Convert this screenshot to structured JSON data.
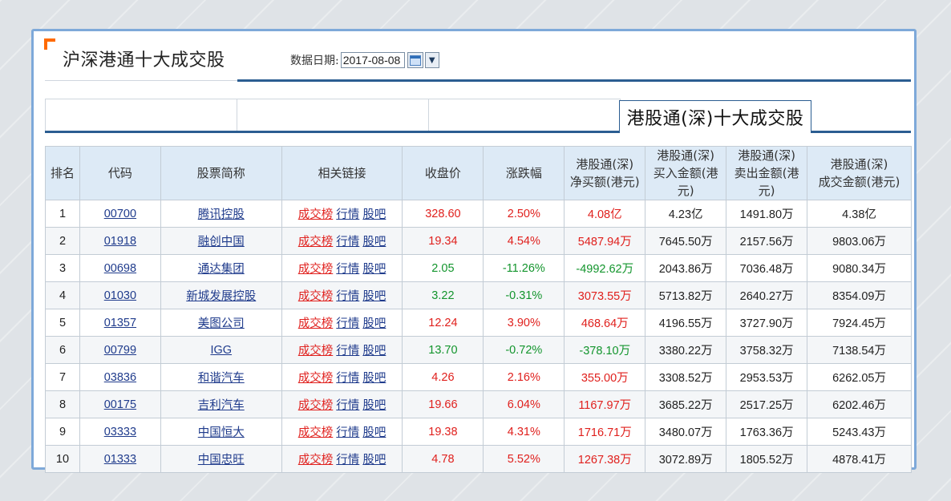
{
  "panel": {
    "title": "沪深港通十大成交股",
    "date_label": "数据日期:",
    "date_value": "2017-08-08"
  },
  "tabs": [
    {
      "label": ""
    },
    {
      "label": ""
    },
    {
      "label": ""
    },
    {
      "label": "港股通(深)十大成交股",
      "active": true
    }
  ],
  "table": {
    "headers": [
      "排名",
      "代码",
      "股票简称",
      "相关链接",
      "收盘价",
      "涨跌幅",
      "港股通(深)\n净买额(港元)",
      "港股通(深)\n买入金额(港元)",
      "港股通(深)\n卖出金额(港元)",
      "港股通(深)\n成交金额(港元)"
    ],
    "link_labels": [
      "成交榜",
      "行情",
      "股吧"
    ],
    "rows": [
      {
        "rank": "1",
        "code": "00700",
        "name": "腾讯控股",
        "close": "328.60",
        "change": "2.50%",
        "net": "4.08亿",
        "buy": "4.23亿",
        "sell": "1491.80万",
        "total": "4.38亿",
        "dir": "up"
      },
      {
        "rank": "2",
        "code": "01918",
        "name": "融创中国",
        "close": "19.34",
        "change": "4.54%",
        "net": "5487.94万",
        "buy": "7645.50万",
        "sell": "2157.56万",
        "total": "9803.06万",
        "dir": "up"
      },
      {
        "rank": "3",
        "code": "00698",
        "name": "通达集团",
        "close": "2.05",
        "change": "-11.26%",
        "net": "-4992.62万",
        "buy": "2043.86万",
        "sell": "7036.48万",
        "total": "9080.34万",
        "dir": "down"
      },
      {
        "rank": "4",
        "code": "01030",
        "name": "新城发展控股",
        "close": "3.22",
        "change": "-0.31%",
        "net": "3073.55万",
        "buy": "5713.82万",
        "sell": "2640.27万",
        "total": "8354.09万",
        "dir": "down",
        "net_dir": "up"
      },
      {
        "rank": "5",
        "code": "01357",
        "name": "美图公司",
        "close": "12.24",
        "change": "3.90%",
        "net": "468.64万",
        "buy": "4196.55万",
        "sell": "3727.90万",
        "total": "7924.45万",
        "dir": "up"
      },
      {
        "rank": "6",
        "code": "00799",
        "name": "IGG",
        "close": "13.70",
        "change": "-0.72%",
        "net": "-378.10万",
        "buy": "3380.22万",
        "sell": "3758.32万",
        "total": "7138.54万",
        "dir": "down"
      },
      {
        "rank": "7",
        "code": "03836",
        "name": "和谐汽车",
        "close": "4.26",
        "change": "2.16%",
        "net": "355.00万",
        "buy": "3308.52万",
        "sell": "2953.53万",
        "total": "6262.05万",
        "dir": "up"
      },
      {
        "rank": "8",
        "code": "00175",
        "name": "吉利汽车",
        "close": "19.66",
        "change": "6.04%",
        "net": "1167.97万",
        "buy": "3685.22万",
        "sell": "2517.25万",
        "total": "6202.46万",
        "dir": "up"
      },
      {
        "rank": "9",
        "code": "03333",
        "name": "中国恒大",
        "close": "19.38",
        "change": "4.31%",
        "net": "1716.71万",
        "buy": "3480.07万",
        "sell": "1763.36万",
        "total": "5243.43万",
        "dir": "up"
      },
      {
        "rank": "10",
        "code": "01333",
        "name": "中国忠旺",
        "close": "4.78",
        "change": "5.52%",
        "net": "1267.38万",
        "buy": "3072.89万",
        "sell": "1805.52万",
        "total": "4878.41万",
        "dir": "up"
      }
    ]
  },
  "colors": {
    "up": "#e0201d",
    "down": "#13952d",
    "accent": "#2b5d91",
    "header_bg": "#ddeaf6",
    "corner": "#ff6a00"
  },
  "icons": [
    "calendar-icon",
    "chevron-down-icon"
  ]
}
